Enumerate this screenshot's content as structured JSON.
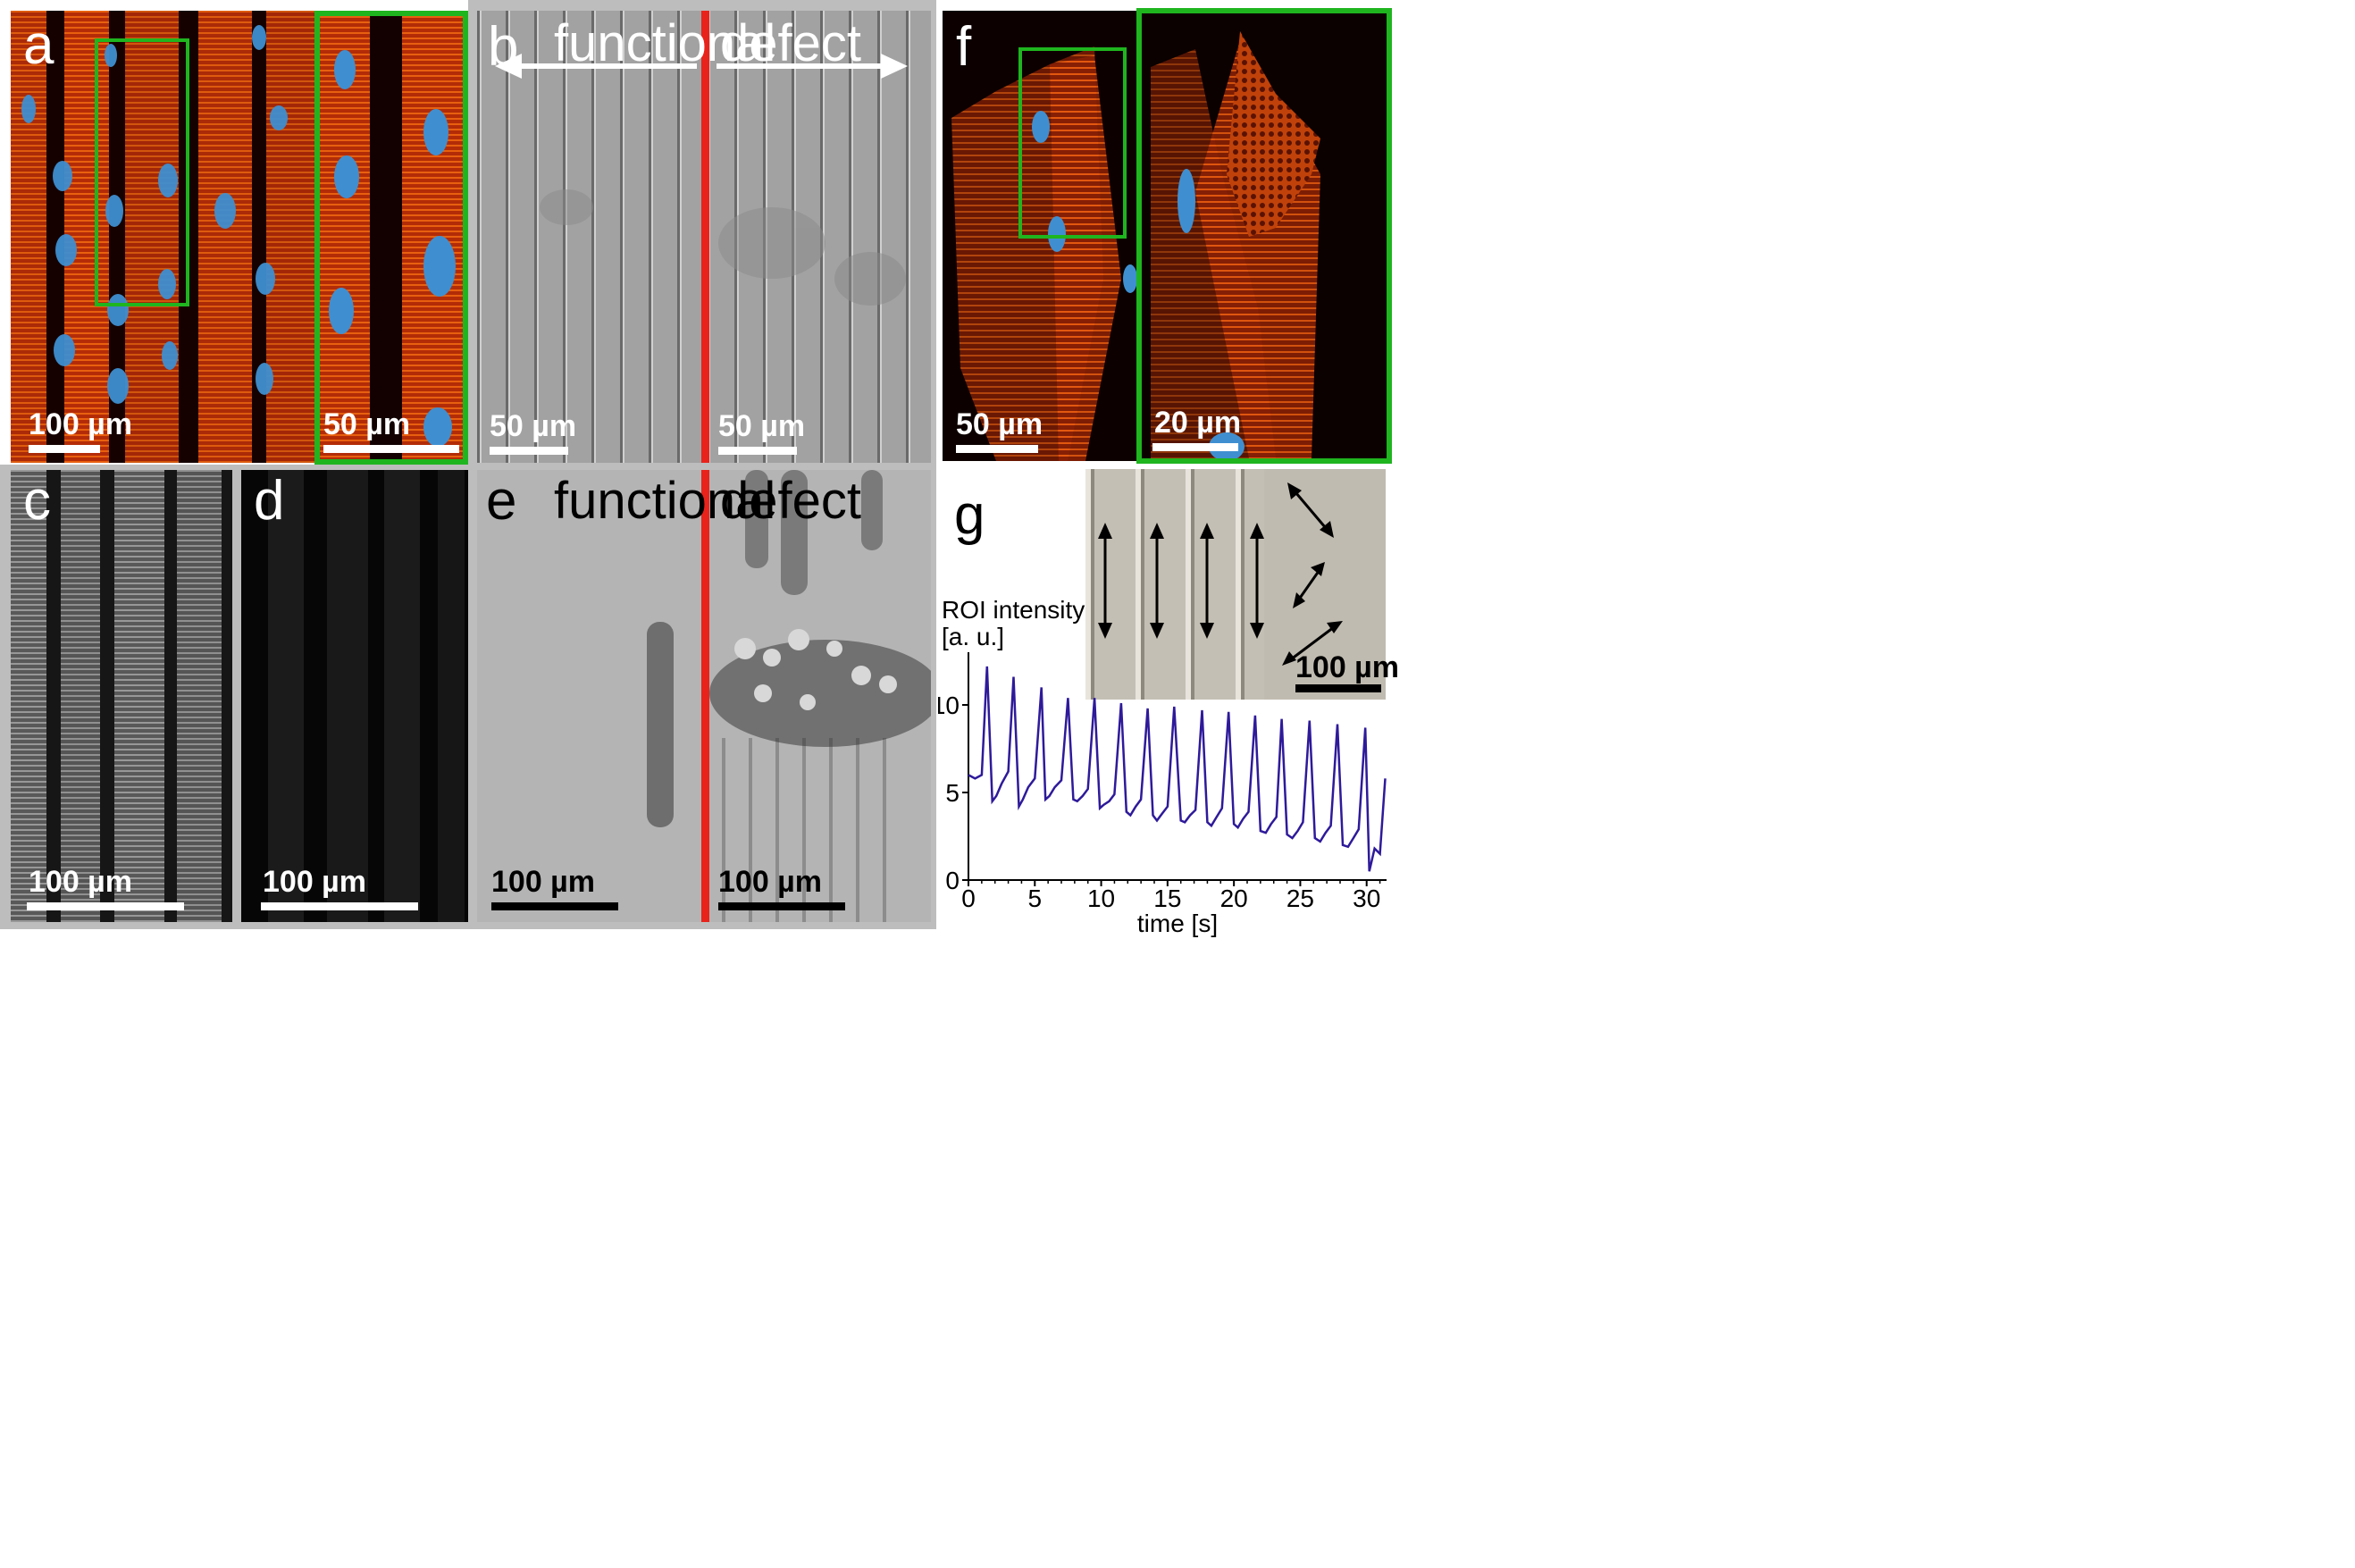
{
  "panels": {
    "a": {
      "label": "a",
      "scale_main": "100 µm",
      "scale_inset": "50 µm"
    },
    "b": {
      "label": "b",
      "left_text": "functional",
      "right_text": "defect",
      "scale_left": "50 µm",
      "scale_right": "50 µm"
    },
    "c": {
      "label": "c",
      "scale": "100 µm"
    },
    "d": {
      "label": "d",
      "scale": "100 µm"
    },
    "e": {
      "label": "e",
      "left_text": "functional",
      "right_text": "defect",
      "scale_left": "100 µm",
      "scale_right": "100 µm"
    },
    "f": {
      "label": "f",
      "scale_main": "50 µm",
      "scale_inset": "20 µm"
    },
    "g": {
      "label": "g",
      "inset_scale": "100 µm"
    }
  },
  "colors": {
    "inset_box": "#1fb51f",
    "divider": "#e8231b",
    "trace": "#2e1a9a",
    "frame": "#bdbdbd"
  },
  "chart_data": {
    "type": "line",
    "title": "",
    "ylabel": "ROI intensity\n[a. u.]",
    "ylabel_lines": [
      "ROI intensity",
      "[a. u.]"
    ],
    "xlabel": "time [s]",
    "xlim": [
      0,
      31.5
    ],
    "ylim": [
      0,
      12.5
    ],
    "xticks": [
      0,
      5,
      10,
      15,
      20,
      25,
      30
    ],
    "yticks": [
      0,
      5,
      10
    ],
    "series": [
      {
        "x": [
          0,
          0.5,
          1.0,
          1.4,
          1.8,
          2.1,
          2.5,
          3.0,
          3.4,
          3.8,
          4.1,
          4.5,
          5.0,
          5.5,
          5.8,
          6.1,
          6.5,
          7.0,
          7.5,
          7.9,
          8.2,
          8.6,
          9.0,
          9.5,
          9.9,
          10.2,
          10.6,
          11.0,
          11.5,
          11.9,
          12.2,
          12.6,
          13.0,
          13.5,
          13.9,
          14.2,
          14.6,
          15.0,
          15.5,
          16.0,
          16.3,
          16.7,
          17.1,
          17.6,
          18.0,
          18.3,
          18.7,
          19.1,
          19.6,
          20.0,
          20.3,
          20.7,
          21.1,
          21.6,
          22.0,
          22.4,
          22.8,
          23.2,
          23.6,
          24.0,
          24.4,
          24.8,
          25.2,
          25.7,
          26.1,
          26.5,
          26.9,
          27.3,
          27.8,
          28.2,
          28.6,
          29.0,
          29.4,
          29.9,
          30.2,
          30.6,
          31.0,
          31.4
        ],
        "y": [
          6.0,
          5.8,
          6.0,
          12.2,
          4.5,
          4.8,
          5.5,
          6.2,
          11.6,
          4.2,
          4.6,
          5.3,
          5.8,
          11.0,
          4.6,
          4.8,
          5.3,
          5.7,
          10.4,
          4.6,
          4.5,
          4.8,
          5.2,
          10.4,
          4.1,
          4.3,
          4.5,
          4.9,
          10.1,
          3.9,
          3.7,
          4.2,
          4.6,
          9.8,
          3.7,
          3.4,
          3.8,
          4.2,
          9.9,
          3.4,
          3.3,
          3.7,
          4.0,
          9.7,
          3.3,
          3.1,
          3.6,
          4.1,
          9.6,
          3.2,
          3.0,
          3.5,
          3.9,
          9.4,
          2.8,
          2.7,
          3.2,
          3.6,
          9.2,
          2.6,
          2.4,
          2.8,
          3.3,
          9.1,
          2.4,
          2.2,
          2.7,
          3.1,
          8.9,
          2.0,
          1.9,
          2.4,
          2.9,
          8.7,
          0.5,
          1.8,
          1.5,
          5.8
        ]
      }
    ]
  }
}
